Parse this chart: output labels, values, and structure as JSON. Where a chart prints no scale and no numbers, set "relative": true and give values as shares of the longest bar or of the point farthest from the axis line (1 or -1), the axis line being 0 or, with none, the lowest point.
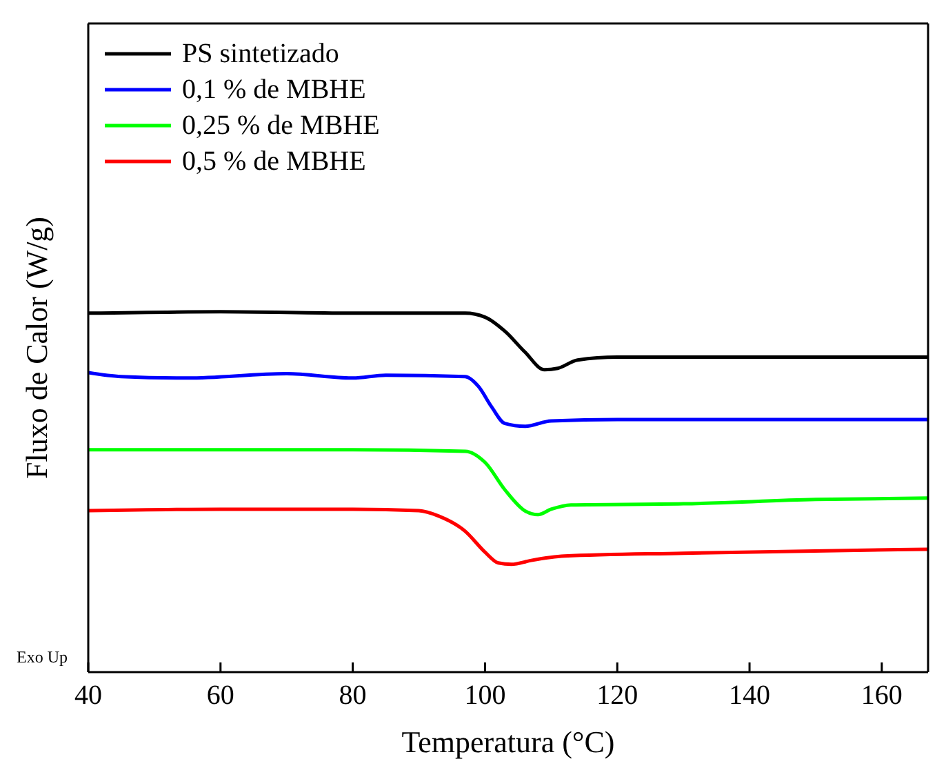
{
  "chart_data": {
    "type": "line",
    "xlabel": "Temperatura (°C)",
    "ylabel": "Fluxo de Calor (W/g)",
    "annotations": [
      "Exo Up"
    ],
    "relative": true,
    "xlim": [
      40,
      167
    ],
    "xticks": [
      40,
      60,
      80,
      100,
      120,
      140,
      160
    ],
    "legend": "top left",
    "marker": "none",
    "line_style": "solid",
    "series": [
      {
        "name": "PS sintetizado",
        "color": "#000000",
        "x": [
          40,
          60,
          80,
          97,
          100,
          103,
          106,
          109,
          111,
          114,
          120,
          140,
          167
        ],
        "values": [
          0.996,
          1.0,
          0.996,
          0.996,
          0.985,
          0.946,
          0.889,
          0.839,
          0.843,
          0.866,
          0.874,
          0.874,
          0.874
        ]
      },
      {
        "name": "0,1 % de MBHE",
        "color": "#0000ff",
        "x": [
          40,
          45,
          55,
          70,
          80,
          85,
          97,
          99,
          101,
          103,
          106,
          110,
          120,
          140,
          167
        ],
        "values": [
          0.831,
          0.82,
          0.816,
          0.828,
          0.816,
          0.824,
          0.82,
          0.793,
          0.736,
          0.69,
          0.682,
          0.697,
          0.701,
          0.701,
          0.701
        ]
      },
      {
        "name": "0,25 % de MBHE",
        "color": "#00ff00",
        "x": [
          40,
          60,
          80,
          97,
          100,
          103,
          106,
          108,
          110,
          113,
          130,
          150,
          167
        ],
        "values": [
          0.617,
          0.617,
          0.617,
          0.613,
          0.582,
          0.506,
          0.448,
          0.437,
          0.452,
          0.464,
          0.467,
          0.479,
          0.483
        ]
      },
      {
        "name": "0,5 % de MBHE",
        "color": "#ff0000",
        "x": [
          40,
          60,
          80,
          90,
          93,
          97,
          100,
          102,
          104,
          107,
          112,
          130,
          167
        ],
        "values": [
          0.448,
          0.452,
          0.452,
          0.448,
          0.433,
          0.391,
          0.333,
          0.303,
          0.299,
          0.31,
          0.322,
          0.33,
          0.341
        ]
      }
    ]
  }
}
